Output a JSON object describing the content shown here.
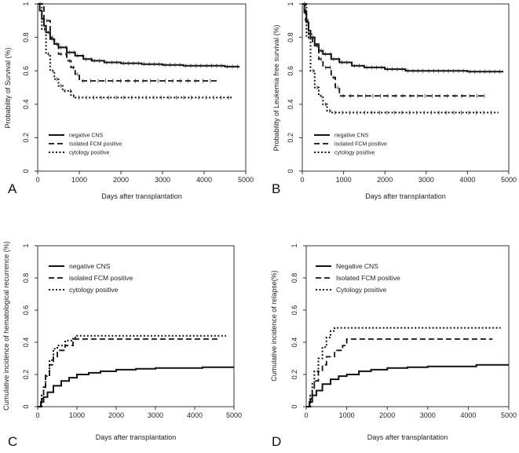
{
  "chart_data": [
    {
      "panel": "A",
      "type": "line",
      "xlabel": "Days after transplantation",
      "ylabel": "Probability of Survival (%)",
      "xlim": [
        0,
        5000
      ],
      "ylim": [
        0,
        1
      ],
      "xticks": [
        0,
        1000,
        2000,
        3000,
        4000,
        5000
      ],
      "yticks": [
        0,
        0.2,
        0.4,
        0.6,
        0.8,
        1
      ],
      "legend": {
        "position": "bottom-left"
      },
      "series": [
        {
          "name": "negative CNS",
          "style": "solid",
          "censored": true,
          "points": [
            [
              0,
              1
            ],
            [
              50,
              0.96
            ],
            [
              100,
              0.91
            ],
            [
              150,
              0.87
            ],
            [
              200,
              0.83
            ],
            [
              300,
              0.79
            ],
            [
              400,
              0.76
            ],
            [
              500,
              0.74
            ],
            [
              700,
              0.71
            ],
            [
              900,
              0.69
            ],
            [
              1100,
              0.67
            ],
            [
              1300,
              0.66
            ],
            [
              1600,
              0.65
            ],
            [
              2000,
              0.645
            ],
            [
              2500,
              0.64
            ],
            [
              3000,
              0.635
            ],
            [
              3500,
              0.63
            ],
            [
              4000,
              0.63
            ],
            [
              4500,
              0.625
            ],
            [
              4850,
              0.625
            ]
          ]
        },
        {
          "name": "Isolated FCM positive",
          "style": "dashed",
          "censored": true,
          "points": [
            [
              0,
              1
            ],
            [
              150,
              0.9
            ],
            [
              300,
              0.8
            ],
            [
              400,
              0.76
            ],
            [
              500,
              0.7
            ],
            [
              700,
              0.66
            ],
            [
              800,
              0.62
            ],
            [
              900,
              0.58
            ],
            [
              1000,
              0.54
            ],
            [
              4300,
              0.54
            ]
          ]
        },
        {
          "name": "cytology positive",
          "style": "dotted",
          "censored": true,
          "points": [
            [
              0,
              1
            ],
            [
              100,
              0.85
            ],
            [
              200,
              0.7
            ],
            [
              300,
              0.6
            ],
            [
              400,
              0.55
            ],
            [
              500,
              0.51
            ],
            [
              600,
              0.48
            ],
            [
              800,
              0.45
            ],
            [
              900,
              0.44
            ],
            [
              4700,
              0.44
            ]
          ]
        }
      ]
    },
    {
      "panel": "B",
      "type": "line",
      "xlabel": "Days after transplantation",
      "ylabel": "Probability of Leukemia free survival (%)",
      "xlim": [
        0,
        5000
      ],
      "ylim": [
        0,
        1
      ],
      "xticks": [
        0,
        1000,
        2000,
        3000,
        4000,
        5000
      ],
      "yticks": [
        0,
        0.2,
        0.4,
        0.6,
        0.8,
        1
      ],
      "legend": {
        "position": "bottom-left"
      },
      "series": [
        {
          "name": "negative CNS",
          "style": "solid",
          "censored": true,
          "points": [
            [
              0,
              1
            ],
            [
              50,
              0.95
            ],
            [
              100,
              0.89
            ],
            [
              150,
              0.84
            ],
            [
              200,
              0.8
            ],
            [
              300,
              0.75
            ],
            [
              400,
              0.72
            ],
            [
              500,
              0.7
            ],
            [
              700,
              0.67
            ],
            [
              900,
              0.65
            ],
            [
              1200,
              0.63
            ],
            [
              1500,
              0.62
            ],
            [
              2000,
              0.61
            ],
            [
              2500,
              0.6
            ],
            [
              3000,
              0.6
            ],
            [
              4000,
              0.595
            ],
            [
              4850,
              0.59
            ]
          ]
        },
        {
          "name": "isolated FCM positive",
          "style": "dashed",
          "censored": true,
          "points": [
            [
              0,
              1
            ],
            [
              80,
              0.9
            ],
            [
              150,
              0.82
            ],
            [
              250,
              0.76
            ],
            [
              400,
              0.67
            ],
            [
              500,
              0.62
            ],
            [
              700,
              0.56
            ],
            [
              800,
              0.5
            ],
            [
              900,
              0.45
            ],
            [
              4450,
              0.45
            ]
          ]
        },
        {
          "name": "cytology positive",
          "style": "dotted",
          "censored": true,
          "points": [
            [
              0,
              1
            ],
            [
              100,
              0.8
            ],
            [
              200,
              0.6
            ],
            [
              300,
              0.5
            ],
            [
              400,
              0.45
            ],
            [
              500,
              0.4
            ],
            [
              600,
              0.36
            ],
            [
              700,
              0.35
            ],
            [
              4750,
              0.35
            ]
          ]
        }
      ]
    },
    {
      "panel": "C",
      "type": "line",
      "xlabel": "Days after transplantation",
      "ylabel": "Cumulative incidence of hematological recurrence (%)",
      "xlim": [
        0,
        5000
      ],
      "ylim": [
        0,
        1
      ],
      "xticks": [
        0,
        1000,
        2000,
        3000,
        4000,
        5000
      ],
      "yticks": [
        0,
        0.2,
        0.4,
        0.6,
        0.8,
        1
      ],
      "legend": {
        "position": "top-left"
      },
      "series": [
        {
          "name": "negative CNS",
          "style": "solid",
          "censored": false,
          "points": [
            [
              0,
              0
            ],
            [
              80,
              0.03
            ],
            [
              150,
              0.06
            ],
            [
              250,
              0.09
            ],
            [
              400,
              0.13
            ],
            [
              600,
              0.16
            ],
            [
              800,
              0.18
            ],
            [
              1000,
              0.2
            ],
            [
              1300,
              0.21
            ],
            [
              1600,
              0.22
            ],
            [
              2000,
              0.23
            ],
            [
              2500,
              0.235
            ],
            [
              3000,
              0.24
            ],
            [
              4000,
              0.24
            ],
            [
              4200,
              0.245
            ],
            [
              5000,
              0.245
            ]
          ]
        },
        {
          "name": "isolated FCM positive",
          "style": "dashed",
          "censored": false,
          "points": [
            [
              0,
              0
            ],
            [
              100,
              0.05
            ],
            [
              150,
              0.12
            ],
            [
              200,
              0.2
            ],
            [
              300,
              0.26
            ],
            [
              400,
              0.31
            ],
            [
              500,
              0.35
            ],
            [
              700,
              0.38
            ],
            [
              900,
              0.42
            ],
            [
              4600,
              0.42
            ]
          ]
        },
        {
          "name": "cytology positive",
          "style": "dotted",
          "censored": false,
          "points": [
            [
              0,
              0
            ],
            [
              100,
              0.07
            ],
            [
              150,
              0.13
            ],
            [
              200,
              0.19
            ],
            [
              300,
              0.29
            ],
            [
              400,
              0.36
            ],
            [
              500,
              0.38
            ],
            [
              700,
              0.41
            ],
            [
              900,
              0.43
            ],
            [
              1000,
              0.44
            ],
            [
              4800,
              0.44
            ]
          ]
        }
      ]
    },
    {
      "panel": "D",
      "type": "line",
      "xlabel": "Days after transplantation",
      "ylabel": "Cumulative incidence of relapse(%)",
      "xlim": [
        0,
        5000
      ],
      "ylim": [
        0,
        1
      ],
      "xticks": [
        0,
        1000,
        2000,
        3000,
        4000,
        5000
      ],
      "yticks": [
        0,
        0.2,
        0.4,
        0.6,
        0.8,
        1
      ],
      "legend": {
        "position": "top-left"
      },
      "series": [
        {
          "name": "Negative CNS",
          "style": "solid",
          "censored": false,
          "points": [
            [
              0,
              0
            ],
            [
              80,
              0.03
            ],
            [
              150,
              0.07
            ],
            [
              250,
              0.1
            ],
            [
              400,
              0.14
            ],
            [
              600,
              0.17
            ],
            [
              800,
              0.19
            ],
            [
              1000,
              0.2
            ],
            [
              1300,
              0.22
            ],
            [
              1600,
              0.23
            ],
            [
              2000,
              0.24
            ],
            [
              2500,
              0.245
            ],
            [
              3000,
              0.25
            ],
            [
              4000,
              0.25
            ],
            [
              4200,
              0.26
            ],
            [
              5000,
              0.26
            ]
          ]
        },
        {
          "name": "Isolated FCM positive",
          "style": "dashed",
          "censored": false,
          "points": [
            [
              0,
              0
            ],
            [
              100,
              0.05
            ],
            [
              150,
              0.1
            ],
            [
              200,
              0.16
            ],
            [
              300,
              0.22
            ],
            [
              400,
              0.26
            ],
            [
              500,
              0.31
            ],
            [
              700,
              0.35
            ],
            [
              900,
              0.38
            ],
            [
              1000,
              0.42
            ],
            [
              4600,
              0.42
            ]
          ]
        },
        {
          "name": "Cytology positive",
          "style": "dotted",
          "censored": false,
          "points": [
            [
              0,
              0
            ],
            [
              100,
              0.07
            ],
            [
              150,
              0.15
            ],
            [
              200,
              0.22
            ],
            [
              300,
              0.3
            ],
            [
              400,
              0.37
            ],
            [
              500,
              0.43
            ],
            [
              600,
              0.47
            ],
            [
              700,
              0.49
            ],
            [
              4800,
              0.49
            ]
          ]
        }
      ]
    }
  ]
}
